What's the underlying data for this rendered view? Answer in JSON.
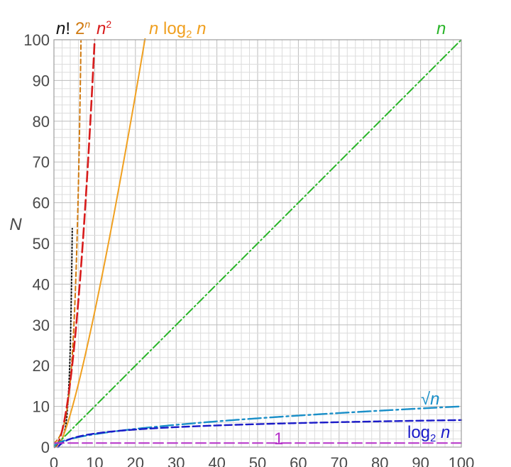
{
  "chart_data": {
    "type": "line",
    "title": "",
    "xlabel": "",
    "ylabel": "N",
    "xlim": [
      0,
      100
    ],
    "ylim": [
      0,
      100
    ],
    "grid": true,
    "x_ticks": [
      "0",
      "10",
      "20",
      "30",
      "40",
      "50",
      "60",
      "70",
      "80",
      "90",
      "100"
    ],
    "y_ticks": [
      "0",
      "10",
      "20",
      "30",
      "40",
      "50",
      "60",
      "70",
      "80",
      "90",
      "100"
    ],
    "series": [
      {
        "name": "n!",
        "function": "factorial",
        "color": "#111111",
        "dash": "dotted",
        "x": [
          0,
          1,
          2,
          3,
          4,
          4.5
        ],
        "y": [
          1,
          1,
          2,
          6,
          24,
          52.3
        ]
      },
      {
        "name": "2ⁿ",
        "function": "2^n",
        "color": "#d07a10",
        "dash": "short-dash",
        "x": [
          0,
          1,
          2,
          3,
          4,
          5,
          6,
          6.64
        ],
        "y": [
          1,
          2,
          4,
          8,
          16,
          32,
          64,
          100
        ]
      },
      {
        "name": "n²",
        "function": "n^2",
        "color": "#d81b1b",
        "dash": "long-dash",
        "x": [
          0,
          2,
          4,
          6,
          8,
          10
        ],
        "y": [
          0,
          4,
          16,
          36,
          64,
          100
        ]
      },
      {
        "name": "n log₂ n",
        "function": "n*log2(n)",
        "color": "#f0a020",
        "dash": "solid",
        "x": [
          1,
          2,
          4,
          8,
          12,
          16,
          20,
          22.6
        ],
        "y": [
          0,
          2,
          8,
          24,
          43,
          64,
          86.4,
          101.8
        ]
      },
      {
        "name": "n",
        "function": "n",
        "color": "#2ab52a",
        "dash": "dash-dot",
        "x": [
          0,
          100
        ],
        "y": [
          0,
          100
        ]
      },
      {
        "name": "√n",
        "function": "sqrt(n)",
        "color": "#1a8fc8",
        "dash": "long-dash-dot",
        "x": [
          0,
          1,
          4,
          9,
          16,
          25,
          36,
          49,
          64,
          81,
          100
        ],
        "y": [
          0,
          1,
          2,
          3,
          4,
          5,
          6,
          7,
          8,
          9,
          10
        ]
      },
      {
        "name": "log₂ n",
        "function": "log2(n)",
        "color": "#1a1ac8",
        "dash": "dash",
        "x": [
          1,
          2,
          4,
          8,
          16,
          32,
          64,
          100
        ],
        "y": [
          0,
          1,
          2,
          3,
          4,
          5,
          6,
          6.64
        ]
      },
      {
        "name": "1",
        "function": "1",
        "color": "#b531c8",
        "dash": "long-dash",
        "x": [
          0,
          100
        ],
        "y": [
          1,
          1
        ]
      }
    ],
    "labels": {
      "n_factorial": {
        "main": "n",
        "suffix": "!"
      },
      "two_pow_n": {
        "base": "2",
        "exp": "n"
      },
      "n_squared": {
        "base": "n",
        "exp": "2"
      },
      "n_log_n": {
        "n1": "n",
        "log": " log",
        "sub": "2",
        "n2": " n"
      },
      "linear": {
        "text": "n"
      },
      "sqrt_n": {
        "radical": "√",
        "n": "n"
      },
      "log_n": {
        "log": "log",
        "sub": "2",
        "n": " n"
      },
      "constant": {
        "text": "1"
      }
    },
    "legend": "inline labels near curves"
  }
}
